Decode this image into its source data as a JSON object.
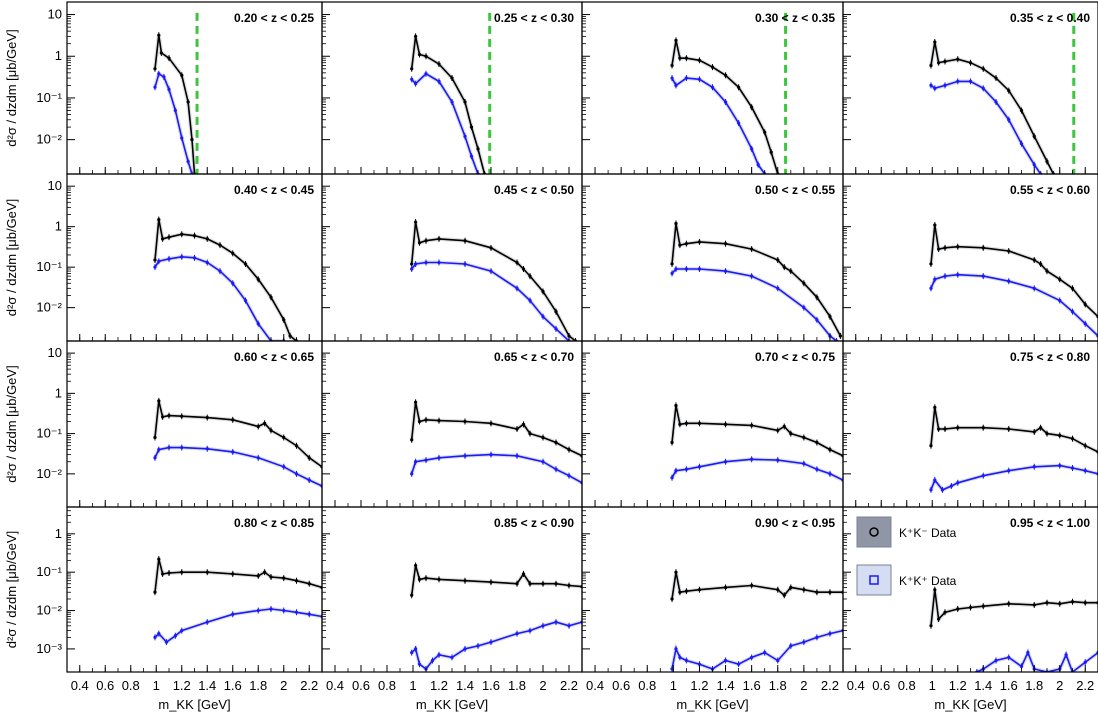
{
  "chart_data": {
    "type": "line",
    "layout": "4x4 grid of panels sharing axes",
    "xlabel": "m_KK [GeV]",
    "ylabel": "d²σ / dzdm [μb/GeV]",
    "xlim": [
      0.3,
      2.3
    ],
    "xticks": [
      0.4,
      0.6,
      0.8,
      1,
      1.2,
      1.4,
      1.6,
      1.8,
      2,
      2.2
    ],
    "xtick_labels": [
      "0.4",
      "0.6",
      "0.8",
      "1",
      "1.2",
      "1.4",
      "1.6",
      "1.8",
      "2",
      "2.2"
    ],
    "yscale": "log",
    "row_ylim": [
      [
        0.0015,
        20
      ],
      [
        0.0015,
        20
      ],
      [
        0.0015,
        20
      ],
      [
        0.00025,
        5
      ]
    ],
    "row_yticks": [
      {
        "values": [
          0.01,
          0.1,
          1,
          10
        ],
        "labels": [
          "10⁻²",
          "10⁻¹",
          "1",
          "10"
        ]
      },
      {
        "values": [
          0.01,
          0.1,
          1,
          10
        ],
        "labels": [
          "10⁻²",
          "10⁻¹",
          "1",
          "10"
        ]
      },
      {
        "values": [
          0.01,
          0.1,
          1,
          10
        ],
        "labels": [
          "10⁻²",
          "10⁻¹",
          "1",
          "10"
        ]
      },
      {
        "values": [
          0.001,
          0.01,
          0.1,
          1
        ],
        "labels": [
          "10⁻³",
          "10⁻²",
          "10⁻¹",
          "1"
        ]
      }
    ],
    "legend": {
      "placement": "top-left of last panel",
      "entries": [
        {
          "label": "K⁺K⁻ Data",
          "color": "#000000",
          "marker": "circle"
        },
        {
          "label": "K⁺K⁺ Data",
          "color": "#1a1aff",
          "marker": "square"
        }
      ]
    },
    "colors": {
      "kpkm": "#000000",
      "kpkp": "#1a1aff",
      "cutoff": "#3ec43e",
      "syst": "#9aa0a8"
    },
    "panels": [
      {
        "label": "0.20 < z < 0.25",
        "cutoff": 1.32,
        "kpkm": {
          "x": [
            0.99,
            1.02,
            1.04,
            1.1,
            1.2,
            1.25,
            1.28,
            1.3
          ],
          "y": [
            0.5,
            3.2,
            1.2,
            0.9,
            0.35,
            0.08,
            0.01,
            0.0015
          ]
        },
        "kpkp": {
          "x": [
            0.99,
            1.02,
            1.06,
            1.1,
            1.15,
            1.2,
            1.25,
            1.28
          ],
          "y": [
            0.18,
            0.38,
            0.32,
            0.16,
            0.05,
            0.011,
            0.003,
            0.0015
          ]
        }
      },
      {
        "label": "0.25 < z < 0.30",
        "cutoff": 1.59,
        "kpkm": {
          "x": [
            0.99,
            1.02,
            1.05,
            1.1,
            1.2,
            1.3,
            1.4,
            1.45,
            1.5,
            1.55
          ],
          "y": [
            0.5,
            3.0,
            1.1,
            1.0,
            0.65,
            0.3,
            0.08,
            0.02,
            0.006,
            0.0015
          ]
        },
        "kpkp": {
          "x": [
            0.99,
            1.02,
            1.1,
            1.2,
            1.3,
            1.4,
            1.45,
            1.5
          ],
          "y": [
            0.28,
            0.22,
            0.38,
            0.25,
            0.08,
            0.012,
            0.004,
            0.0015
          ]
        }
      },
      {
        "label": "0.30 < z < 0.35",
        "cutoff": 1.86,
        "kpkm": {
          "x": [
            0.99,
            1.02,
            1.05,
            1.1,
            1.2,
            1.3,
            1.4,
            1.5,
            1.6,
            1.7,
            1.75,
            1.8
          ],
          "y": [
            0.6,
            2.4,
            0.9,
            0.9,
            0.8,
            0.55,
            0.35,
            0.18,
            0.06,
            0.015,
            0.005,
            0.0015
          ]
        },
        "kpkp": {
          "x": [
            0.99,
            1.02,
            1.1,
            1.2,
            1.3,
            1.4,
            1.5,
            1.6,
            1.65,
            1.7
          ],
          "y": [
            0.3,
            0.2,
            0.3,
            0.28,
            0.18,
            0.08,
            0.025,
            0.006,
            0.0025,
            0.0015
          ]
        }
      },
      {
        "label": "0.35 < z < 0.40",
        "cutoff": 2.11,
        "kpkm": {
          "x": [
            0.99,
            1.02,
            1.05,
            1.1,
            1.2,
            1.3,
            1.4,
            1.5,
            1.6,
            1.7,
            1.8,
            1.9,
            1.95
          ],
          "y": [
            0.6,
            2.2,
            0.7,
            0.75,
            0.85,
            0.7,
            0.5,
            0.3,
            0.15,
            0.05,
            0.012,
            0.003,
            0.0015
          ]
        },
        "kpkp": {
          "x": [
            0.99,
            1.02,
            1.1,
            1.2,
            1.3,
            1.4,
            1.5,
            1.6,
            1.7,
            1.8,
            1.85
          ],
          "y": [
            0.2,
            0.17,
            0.2,
            0.25,
            0.25,
            0.17,
            0.08,
            0.03,
            0.008,
            0.0025,
            0.0015
          ]
        }
      },
      {
        "label": "0.40 < z < 0.45",
        "kpkm": {
          "x": [
            0.99,
            1.02,
            1.05,
            1.1,
            1.2,
            1.3,
            1.4,
            1.5,
            1.6,
            1.7,
            1.8,
            1.9,
            2.0,
            2.05,
            2.1
          ],
          "y": [
            0.15,
            1.5,
            0.5,
            0.55,
            0.65,
            0.6,
            0.5,
            0.35,
            0.22,
            0.12,
            0.05,
            0.018,
            0.005,
            0.002,
            0.0015
          ]
        },
        "kpkp": {
          "x": [
            0.99,
            1.02,
            1.1,
            1.2,
            1.3,
            1.4,
            1.5,
            1.6,
            1.7,
            1.8,
            1.9,
            2.0
          ],
          "y": [
            0.1,
            0.14,
            0.16,
            0.18,
            0.17,
            0.13,
            0.08,
            0.04,
            0.015,
            0.004,
            0.0015,
            0.0015
          ]
        }
      },
      {
        "label": "0.45 < z < 0.50",
        "kpkm": {
          "x": [
            0.99,
            1.02,
            1.05,
            1.1,
            1.2,
            1.4,
            1.6,
            1.8,
            1.85,
            1.9,
            2.0,
            2.1,
            2.2,
            2.25
          ],
          "y": [
            0.12,
            1.3,
            0.4,
            0.45,
            0.5,
            0.45,
            0.3,
            0.13,
            0.09,
            0.06,
            0.025,
            0.008,
            0.002,
            0.0015
          ]
        },
        "kpkp": {
          "x": [
            0.99,
            1.02,
            1.1,
            1.2,
            1.4,
            1.6,
            1.8,
            1.9,
            2.0,
            2.1,
            2.2
          ],
          "y": [
            0.09,
            0.12,
            0.13,
            0.13,
            0.12,
            0.08,
            0.03,
            0.015,
            0.006,
            0.003,
            0.0015
          ]
        }
      },
      {
        "label": "0.50 < z < 0.55",
        "kpkm": {
          "x": [
            0.99,
            1.02,
            1.05,
            1.1,
            1.2,
            1.4,
            1.6,
            1.8,
            1.85,
            1.9,
            2.0,
            2.1,
            2.2,
            2.28
          ],
          "y": [
            0.12,
            1.2,
            0.35,
            0.38,
            0.42,
            0.38,
            0.28,
            0.15,
            0.1,
            0.08,
            0.04,
            0.018,
            0.006,
            0.002
          ]
        },
        "kpkp": {
          "x": [
            0.99,
            1.02,
            1.1,
            1.2,
            1.4,
            1.6,
            1.8,
            2.0,
            2.1,
            2.2,
            2.25
          ],
          "y": [
            0.07,
            0.09,
            0.09,
            0.09,
            0.08,
            0.06,
            0.03,
            0.01,
            0.005,
            0.002,
            0.0015
          ]
        }
      },
      {
        "label": "0.55 < z < 0.60",
        "kpkm": {
          "x": [
            0.99,
            1.02,
            1.05,
            1.1,
            1.2,
            1.4,
            1.6,
            1.8,
            1.85,
            1.9,
            2.0,
            2.1,
            2.2,
            2.3
          ],
          "y": [
            0.12,
            1.1,
            0.28,
            0.3,
            0.32,
            0.3,
            0.25,
            0.15,
            0.12,
            0.08,
            0.05,
            0.03,
            0.012,
            0.006
          ]
        },
        "kpkp": {
          "x": [
            0.99,
            1.02,
            1.1,
            1.2,
            1.4,
            1.6,
            1.8,
            2.0,
            2.1,
            2.2,
            2.3
          ],
          "y": [
            0.03,
            0.05,
            0.06,
            0.065,
            0.06,
            0.045,
            0.03,
            0.015,
            0.008,
            0.004,
            0.002
          ]
        }
      },
      {
        "label": "0.60 < z < 0.65",
        "kpkm": {
          "x": [
            0.99,
            1.02,
            1.05,
            1.1,
            1.2,
            1.4,
            1.6,
            1.8,
            1.85,
            1.9,
            2.0,
            2.1,
            2.2,
            2.3
          ],
          "y": [
            0.08,
            0.65,
            0.26,
            0.28,
            0.27,
            0.25,
            0.22,
            0.15,
            0.18,
            0.12,
            0.08,
            0.05,
            0.025,
            0.015
          ]
        },
        "kpkp": {
          "x": [
            0.99,
            1.02,
            1.1,
            1.2,
            1.4,
            1.6,
            1.8,
            2.0,
            2.1,
            2.2,
            2.3
          ],
          "y": [
            0.025,
            0.04,
            0.045,
            0.045,
            0.042,
            0.035,
            0.025,
            0.015,
            0.01,
            0.007,
            0.005
          ]
        }
      },
      {
        "label": "0.65 < z < 0.70",
        "kpkm": {
          "x": [
            0.99,
            1.02,
            1.05,
            1.1,
            1.2,
            1.4,
            1.6,
            1.8,
            1.85,
            1.9,
            2.0,
            2.1,
            2.2,
            2.3
          ],
          "y": [
            0.07,
            0.6,
            0.2,
            0.22,
            0.21,
            0.2,
            0.18,
            0.13,
            0.17,
            0.1,
            0.08,
            0.06,
            0.04,
            0.028
          ]
        },
        "kpkp": {
          "x": [
            0.99,
            1.02,
            1.1,
            1.2,
            1.4,
            1.6,
            1.8,
            2.0,
            2.1,
            2.2,
            2.3
          ],
          "y": [
            0.01,
            0.02,
            0.022,
            0.025,
            0.028,
            0.03,
            0.028,
            0.02,
            0.013,
            0.009,
            0.006
          ]
        }
      },
      {
        "label": "0.70 < z < 0.75",
        "kpkm": {
          "x": [
            0.99,
            1.02,
            1.05,
            1.1,
            1.2,
            1.4,
            1.6,
            1.8,
            1.85,
            1.9,
            2.0,
            2.1,
            2.2,
            2.3
          ],
          "y": [
            0.06,
            0.5,
            0.17,
            0.18,
            0.18,
            0.17,
            0.16,
            0.12,
            0.15,
            0.1,
            0.08,
            0.06,
            0.04,
            0.028
          ]
        },
        "kpkp": {
          "x": [
            0.99,
            1.02,
            1.1,
            1.2,
            1.4,
            1.6,
            1.8,
            2.0,
            2.1,
            2.2,
            2.3
          ],
          "y": [
            0.008,
            0.012,
            0.013,
            0.015,
            0.02,
            0.023,
            0.022,
            0.018,
            0.013,
            0.01,
            0.007
          ]
        }
      },
      {
        "label": "0.75 < z < 0.80",
        "kpkm": {
          "x": [
            0.99,
            1.02,
            1.05,
            1.1,
            1.2,
            1.4,
            1.6,
            1.8,
            1.85,
            1.9,
            2.0,
            2.1,
            2.2,
            2.3
          ],
          "y": [
            0.05,
            0.45,
            0.13,
            0.13,
            0.14,
            0.14,
            0.13,
            0.11,
            0.14,
            0.1,
            0.09,
            0.075,
            0.05,
            0.035
          ]
        },
        "kpkp": {
          "x": [
            0.99,
            1.02,
            1.08,
            1.15,
            1.2,
            1.4,
            1.6,
            1.8,
            2.0,
            2.1,
            2.2,
            2.3
          ],
          "y": [
            0.004,
            0.007,
            0.004,
            0.005,
            0.006,
            0.009,
            0.012,
            0.015,
            0.016,
            0.014,
            0.012,
            0.01
          ]
        }
      },
      {
        "label": "0.80 < z < 0.85",
        "kpkm": {
          "x": [
            0.99,
            1.02,
            1.05,
            1.1,
            1.2,
            1.4,
            1.6,
            1.8,
            1.85,
            1.9,
            2.0,
            2.1,
            2.2,
            2.3
          ],
          "y": [
            0.03,
            0.22,
            0.09,
            0.095,
            0.1,
            0.1,
            0.09,
            0.08,
            0.1,
            0.075,
            0.07,
            0.06,
            0.05,
            0.04
          ]
        },
        "kpkp": {
          "x": [
            0.99,
            1.02,
            1.08,
            1.15,
            1.2,
            1.4,
            1.6,
            1.8,
            1.9,
            2.0,
            2.1,
            2.2,
            2.3
          ],
          "y": [
            0.002,
            0.0025,
            0.0015,
            0.0022,
            0.003,
            0.005,
            0.008,
            0.01,
            0.011,
            0.01,
            0.009,
            0.008,
            0.007
          ]
        }
      },
      {
        "label": "0.85 < z < 0.90",
        "kpkm": {
          "x": [
            0.99,
            1.02,
            1.05,
            1.1,
            1.2,
            1.4,
            1.6,
            1.8,
            1.85,
            1.9,
            2.0,
            2.1,
            2.2,
            2.3
          ],
          "y": [
            0.025,
            0.15,
            0.065,
            0.07,
            0.065,
            0.06,
            0.055,
            0.05,
            0.09,
            0.05,
            0.05,
            0.05,
            0.045,
            0.042
          ]
        },
        "kpkp": {
          "x": [
            0.99,
            1.02,
            1.05,
            1.1,
            1.15,
            1.2,
            1.3,
            1.4,
            1.5,
            1.6,
            1.8,
            1.9,
            2.0,
            2.1,
            2.2,
            2.3
          ],
          "y": [
            0.0008,
            0.001,
            0.0004,
            0.0003,
            0.0005,
            0.0007,
            0.0006,
            0.001,
            0.0012,
            0.0015,
            0.0025,
            0.003,
            0.004,
            0.005,
            0.004,
            0.005
          ]
        }
      },
      {
        "label": "0.90 < z < 0.95",
        "kpkm": {
          "x": [
            0.99,
            1.02,
            1.05,
            1.1,
            1.2,
            1.4,
            1.6,
            1.8,
            1.85,
            1.9,
            2.0,
            2.1,
            2.2,
            2.3
          ],
          "y": [
            0.02,
            0.1,
            0.03,
            0.032,
            0.035,
            0.04,
            0.045,
            0.035,
            0.025,
            0.04,
            0.035,
            0.03,
            0.03,
            0.03
          ]
        },
        "kpkp": {
          "x": [
            0.99,
            1.02,
            1.05,
            1.1,
            1.2,
            1.3,
            1.4,
            1.5,
            1.6,
            1.7,
            1.8,
            1.9,
            2.0,
            2.1,
            2.2,
            2.3
          ],
          "y": [
            0.0003,
            0.001,
            0.0006,
            0.0005,
            0.0004,
            0.0003,
            0.0005,
            0.0004,
            0.0006,
            0.0008,
            0.0005,
            0.0012,
            0.0015,
            0.002,
            0.0025,
            0.003
          ]
        }
      },
      {
        "label": "0.95 < z < 1.00",
        "kpkm": {
          "x": [
            0.99,
            1.02,
            1.05,
            1.1,
            1.2,
            1.3,
            1.4,
            1.6,
            1.8,
            1.9,
            2.0,
            2.1,
            2.2,
            2.3
          ],
          "y": [
            0.004,
            0.035,
            0.006,
            0.009,
            0.011,
            0.012,
            0.013,
            0.015,
            0.014,
            0.016,
            0.015,
            0.017,
            0.016,
            0.016
          ]
        },
        "kpkp": {
          "x": [
            1.35,
            1.4,
            1.5,
            1.6,
            1.7,
            1.75,
            1.8,
            1.9,
            2.0,
            2.05,
            2.1,
            2.2,
            2.3
          ],
          "y": [
            0.00025,
            0.0003,
            0.0005,
            0.0006,
            0.00035,
            0.0008,
            0.0003,
            0.00025,
            0.0003,
            0.0007,
            0.0002,
            0.00045,
            0.0008
          ]
        }
      }
    ]
  }
}
